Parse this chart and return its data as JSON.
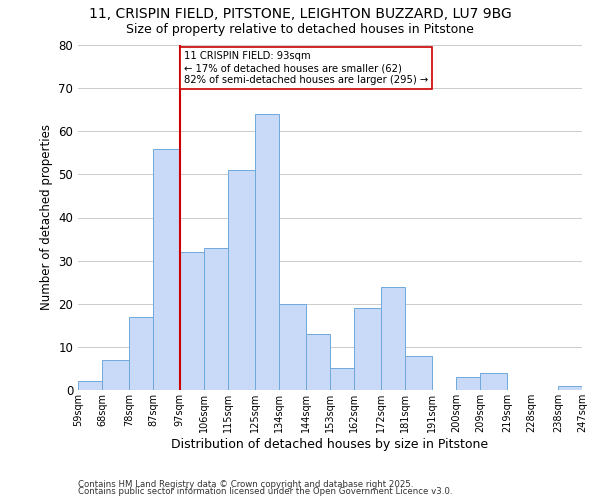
{
  "title1": "11, CRISPIN FIELD, PITSTONE, LEIGHTON BUZZARD, LU7 9BG",
  "title2": "Size of property relative to detached houses in Pitstone",
  "xlabel": "Distribution of detached houses by size in Pitstone",
  "ylabel": "Number of detached properties",
  "bins": [
    59,
    68,
    78,
    87,
    97,
    106,
    115,
    125,
    134,
    144,
    153,
    162,
    172,
    181,
    191,
    200,
    209,
    219,
    228,
    238,
    247
  ],
  "counts": [
    2,
    7,
    17,
    56,
    32,
    33,
    51,
    64,
    20,
    13,
    5,
    19,
    24,
    8,
    0,
    3,
    4,
    0,
    0,
    1
  ],
  "bar_facecolor": "#c9daf8",
  "bar_edgecolor": "#6fa8dc",
  "property_line_x": 97,
  "property_line_color": "#cc0000",
  "annotation_title": "11 CRISPIN FIELD: 93sqm",
  "annotation_line1": "← 17% of detached houses are smaller (62)",
  "annotation_line2": "82% of semi-detached houses are larger (295) →",
  "annotation_box_edgecolor": "#cc0000",
  "annotation_box_facecolor": "#ffffff",
  "ylim": [
    0,
    80
  ],
  "yticks": [
    0,
    10,
    20,
    30,
    40,
    50,
    60,
    70,
    80
  ],
  "tick_labels": [
    "59sqm",
    "68sqm",
    "78sqm",
    "87sqm",
    "97sqm",
    "106sqm",
    "115sqm",
    "125sqm",
    "134sqm",
    "144sqm",
    "153sqm",
    "162sqm",
    "172sqm",
    "181sqm",
    "191sqm",
    "200sqm",
    "209sqm",
    "219sqm",
    "228sqm",
    "238sqm",
    "247sqm"
  ],
  "footnote1": "Contains HM Land Registry data © Crown copyright and database right 2025.",
  "footnote2": "Contains public sector information licensed under the Open Government Licence v3.0.",
  "background_color": "#ffffff",
  "grid_color": "#cccccc"
}
